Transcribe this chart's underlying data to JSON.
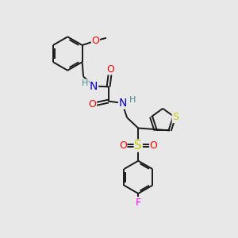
{
  "background_color": "#e8e8e8",
  "bond_color": "#1a1a1a",
  "bond_width": 1.4,
  "atom_colors": {
    "N": "#0000cc",
    "O": "#ff0000",
    "S_sulfonyl": "#cccc00",
    "S_thio": "#cccc00",
    "F": "#ff00ff",
    "H": "#4a9090",
    "C": "#1a1a1a"
  },
  "xlim": [
    0,
    10
  ],
  "ylim": [
    0,
    10
  ]
}
